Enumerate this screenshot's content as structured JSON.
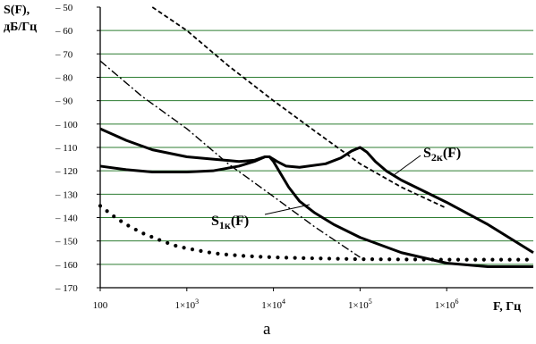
{
  "chart_data": {
    "type": "line",
    "ylabel_line1": "S(F),",
    "ylabel_line2": "дБ/Гц",
    "xlabel": "F, Гц",
    "caption": "a",
    "xscale": "log",
    "xlim": [
      100,
      10000000
    ],
    "ylim": [
      -170,
      -50
    ],
    "grid": "horizontal",
    "x_tick_labels": [
      {
        "value": 100,
        "label": "100"
      },
      {
        "value": 1000,
        "base": "1×10",
        "exp": "3"
      },
      {
        "value": 10000,
        "base": "1×10",
        "exp": "4"
      },
      {
        "value": 100000,
        "base": "1×10",
        "exp": "5"
      },
      {
        "value": 1000000,
        "base": "1×10",
        "exp": "6"
      }
    ],
    "y_ticks": [
      -50,
      -60,
      -70,
      -80,
      -90,
      -100,
      -110,
      -120,
      -130,
      -140,
      -150,
      -160,
      -170
    ],
    "y_tick_labels": [
      "– 50",
      "– 60",
      "– 70",
      "– 80",
      "– 90",
      "– 100",
      "– 110",
      "– 120",
      "– 130",
      "– 140",
      "– 150",
      "– 160",
      "– 170"
    ],
    "annotations": [
      {
        "main": "S",
        "sub": "2к",
        "suffix": "(F)"
      },
      {
        "main": "S",
        "sub": "1к",
        "suffix": "(F)"
      }
    ],
    "series": [
      {
        "style": "solid",
        "x": [
          100,
          200,
          400,
          1000,
          2000,
          4000,
          6000,
          8000,
          9000,
          10000,
          12000,
          15000,
          20000,
          30000,
          50000,
          100000,
          300000,
          1000000,
          3000000,
          10000000
        ],
        "y": [
          -118,
          -119.5,
          -120.5,
          -120.5,
          -120,
          -118,
          -116,
          -114,
          -114,
          -116,
          -121,
          -127,
          -133,
          -138,
          -143,
          -148.5,
          -155,
          -159.5,
          -161,
          -161
        ]
      },
      {
        "style": "solid",
        "x": [
          100,
          200,
          400,
          1000,
          2000,
          4000,
          6000,
          8000,
          9000,
          11000,
          14000,
          20000,
          40000,
          60000,
          80000,
          100000,
          120000,
          150000,
          200000,
          300000,
          1000000,
          3000000,
          10000000
        ],
        "y": [
          -102,
          -107,
          -111,
          -114,
          -115,
          -116,
          -115.5,
          -114,
          -114,
          -116,
          -118,
          -118.5,
          -117,
          -114.5,
          -111.5,
          -110,
          -112,
          -116,
          -120,
          -124,
          -133.5,
          -143,
          -155
        ]
      },
      {
        "style": "dashed",
        "x": [
          400,
          1000,
          3000,
          10000,
          30000,
          100000,
          300000,
          1000000
        ],
        "y": [
          -50,
          -60,
          -75,
          -90,
          -103,
          -117,
          -127,
          -136
        ]
      },
      {
        "style": "dashdot",
        "x": [
          100,
          300,
          1000,
          3000,
          10000,
          30000,
          100000
        ],
        "y": [
          -73,
          -88,
          -102,
          -117,
          -131,
          -144,
          -157
        ]
      },
      {
        "style": "dotted",
        "x": [
          100,
          150,
          200,
          300,
          500,
          700,
          1000,
          2000,
          3000,
          5000,
          10000,
          20000,
          50000,
          100000,
          1000000,
          10000000
        ],
        "y": [
          -135,
          -140,
          -143,
          -146.5,
          -149.8,
          -151.8,
          -153.2,
          -155.2,
          -155.9,
          -156.5,
          -157,
          -157.3,
          -157.6,
          -157.8,
          -158,
          -158
        ]
      }
    ]
  }
}
